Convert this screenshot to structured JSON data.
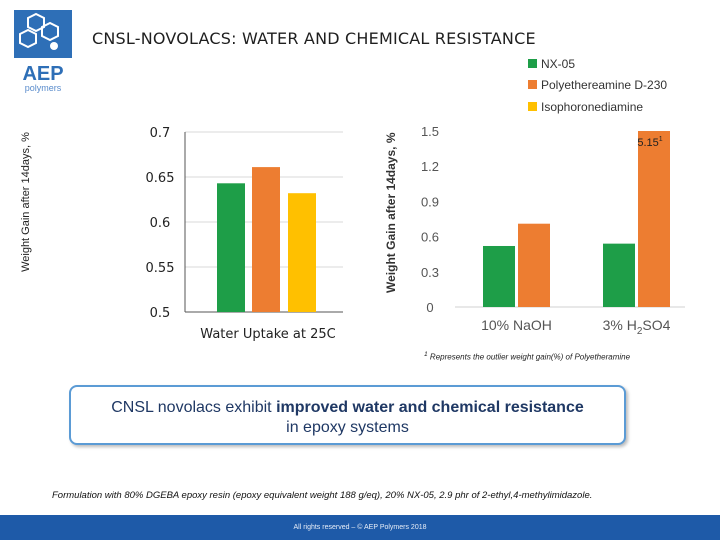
{
  "header": {
    "title": "CNSL-NOVOLACS: WATER AND CHEMICAL RESISTANCE",
    "logo_text": "AEP",
    "logo_subtext": "polymers"
  },
  "legend": {
    "items": [
      {
        "label": "NX-05",
        "color": "#1e9e48"
      },
      {
        "label": "Polyethereamine D-230",
        "color": "#ed7d31"
      },
      {
        "label": "Isophoronediamine",
        "color": "#ffc000"
      }
    ]
  },
  "chart_data": [
    {
      "type": "bar",
      "ylabel": "Weight Gain after 14days, %",
      "xlabel": "Water Uptake at 25C",
      "ylim": [
        0.5,
        0.7
      ],
      "yticks": [
        "0.5",
        "0.55",
        "0.6",
        "0.65",
        "0.7"
      ],
      "categories": [
        "Water Uptake at 25C"
      ],
      "series": [
        {
          "name": "NX-05",
          "color": "#1e9e48",
          "values": [
            0.643
          ]
        },
        {
          "name": "Polyethereamine D-230",
          "color": "#ed7d31",
          "values": [
            0.661
          ]
        },
        {
          "name": "Isophoronediamine",
          "color": "#ffc000",
          "values": [
            0.632
          ]
        }
      ],
      "grid": true
    },
    {
      "type": "bar",
      "ylabel": "Weight Gain after 14days, %",
      "ylim": [
        0,
        1.5
      ],
      "yticks": [
        "0",
        "0.3",
        "0.6",
        "0.9",
        "1.2",
        "1.5"
      ],
      "categories": [
        "10% NaOH",
        "3% H2SO4"
      ],
      "category_labels": [
        {
          "main": "10% NaOH",
          "sub": "",
          "tail": ""
        },
        {
          "main": "3% H",
          "sub": "2",
          "tail": "SO4"
        }
      ],
      "series": [
        {
          "name": "NX-05",
          "color": "#1e9e48",
          "values": [
            0.52,
            0.54
          ]
        },
        {
          "name": "Polyethereamine D-230",
          "color": "#ed7d31",
          "values": [
            0.71,
            1.5
          ]
        }
      ],
      "annotation": {
        "text": "5.15",
        "superscript": "1"
      },
      "grid": false
    }
  ],
  "footnote": {
    "marker": "1",
    "text": " Represents the outlier weight gain(%) of Polyetheramine"
  },
  "callout": {
    "pre": "CNSL novolacs exhibit ",
    "bold": "improved water and chemical resistance",
    "post": "in epoxy systems"
  },
  "formulation": "Formulation with 80% DGEBA epoxy resin (epoxy equivalent weight 188 g/eq), 20% NX-05, 2.9 phr of 2-ethyl,4-methylimidazole.",
  "footer": {
    "text": "All rights reserved – © AEP Polymers 2018"
  }
}
